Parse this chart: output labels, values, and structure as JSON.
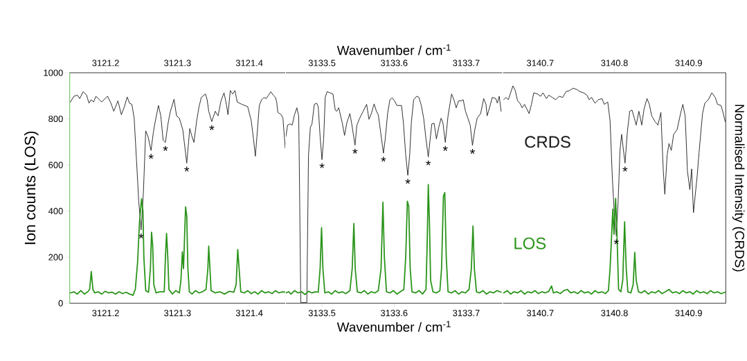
{
  "chart_data": [
    {
      "type": "line",
      "ylabel": "Ion counts (LOS)",
      "xlim": [
        3121.15,
        3121.45
      ],
      "xticks": [
        3121.2,
        3121.3,
        3121.4
      ],
      "x2lim": [
        3121.15,
        3121.45
      ],
      "x2ticks": [
        3121.2,
        3121.3,
        3121.4
      ],
      "ylim": [
        0,
        1000
      ],
      "yticks": [
        0,
        200,
        400,
        600,
        800,
        1000
      ],
      "series": [
        {
          "color": "#1a1a1a",
          "x": [
            3121.151,
            3121.1558,
            3121.1606,
            3121.1639,
            3121.1687,
            3121.1735,
            3121.1768,
            3121.18,
            3121.1832,
            3121.1865,
            3121.1913,
            3121.1945,
            3121.2026,
            3121.2074,
            3121.2113,
            3121.2171,
            3121.2219,
            3121.2261,
            3121.23,
            3121.2332,
            3121.2365,
            3121.2397,
            3121.2429,
            3121.2461,
            3121.2494,
            3121.2526,
            3121.2558,
            3121.259,
            3121.2632,
            3121.2665,
            3121.2687,
            3121.2735,
            3121.2768,
            3121.28,
            3121.2832,
            3121.2865,
            3121.2897,
            3121.2952,
            3121.2987,
            3121.3026,
            3121.3074,
            3121.3129,
            3121.3171,
            3121.3197,
            3121.3229,
            3121.3268,
            3121.33,
            3121.3332,
            3121.339,
            3121.3413,
            3121.3435,
            3121.3477,
            3121.3526,
            3121.3565,
            3121.3606,
            3121.3648,
            3121.3681,
            3121.3703,
            3121.3735,
            3121.3768,
            3121.38,
            3121.3832,
            3121.3897,
            3121.3977,
            3121.4026,
            3121.4058,
            3121.4084,
            3121.4106,
            3121.4139,
            3121.4171,
            3121.4203,
            3121.4235,
            3121.4268,
            3121.43,
            3121.4332,
            3121.4365,
            3121.4381,
            3121.4397,
            3121.4445,
            3121.4468,
            3121.45
          ],
          "values": [
            873,
            898,
            903,
            888,
            918,
            903,
            868,
            883,
            873,
            898,
            883,
            873,
            898,
            868,
            833,
            878,
            818,
            853,
            895,
            868,
            863,
            803,
            623,
            443,
            318,
            483,
            748,
            723,
            663,
            743,
            783,
            858,
            813,
            708,
            698,
            773,
            828,
            885,
            813,
            803,
            753,
            608,
            758,
            728,
            698,
            793,
            853,
            893,
            908,
            883,
            833,
            788,
            833,
            813,
            878,
            913,
            863,
            818,
            923,
            908,
            923,
            873,
            863,
            853,
            793,
            713,
            638,
            723,
            858,
            883,
            893,
            888,
            903,
            918,
            903,
            893,
            873,
            828,
            818,
            803,
            673
          ]
        },
        {
          "color": "#2a941a",
          "x": [
            3121.151,
            3121.1558,
            3121.1606,
            3121.1655,
            3121.1703,
            3121.1752,
            3121.1777,
            3121.18,
            3121.1823,
            3121.1848,
            3121.1897,
            3121.1945,
            3121.1994,
            3121.2042,
            3121.209,
            3121.2139,
            3121.2187,
            3121.2235,
            3121.2284,
            3121.2332,
            3121.2381,
            3121.2413,
            3121.2445,
            3121.2471,
            3121.25,
            3121.2519,
            3121.2532,
            3121.2558,
            3121.2597,
            3121.2623,
            3121.2639,
            3121.2655,
            3121.2671,
            3121.2703,
            3121.2752,
            3121.2816,
            3121.2832,
            3121.2848,
            3121.2865,
            3121.2881,
            3121.2929,
            3121.2977,
            3121.3026,
            3121.3048,
            3121.3068,
            3121.3084,
            3121.31,
            3121.3113,
            3121.3129,
            3121.3145,
            3121.3165,
            3121.3203,
            3121.3252,
            3121.33,
            3121.3348,
            3121.3397,
            3121.3423,
            3121.3435,
            3121.3452,
            3121.3468,
            3121.3526,
            3121.359,
            3121.3655,
            3121.3719,
            3121.3784,
            3121.3816,
            3121.3839,
            3121.3858,
            3121.3881,
            3121.3929,
            3121.3977,
            3121.4026,
            3121.4074,
            3121.4123,
            3121.4171,
            3121.4219,
            3121.4268,
            3121.4316,
            3121.4365,
            3121.4413,
            3121.4461,
            3121.45
          ],
          "values": [
            45,
            50,
            40,
            55,
            40,
            50,
            60,
            138,
            60,
            45,
            50,
            40,
            52,
            45,
            48,
            40,
            50,
            42,
            48,
            40,
            35,
            60,
            180,
            350,
            453,
            400,
            200,
            55,
            48,
            150,
            308,
            250,
            80,
            45,
            50,
            50,
            200,
            303,
            200,
            60,
            40,
            55,
            45,
            100,
            223,
            150,
            300,
            418,
            380,
            150,
            50,
            40,
            55,
            45,
            50,
            60,
            150,
            248,
            150,
            55,
            45,
            50,
            40,
            52,
            48,
            80,
            233,
            150,
            50,
            45,
            55,
            42,
            50,
            40,
            55,
            45,
            50,
            42,
            55,
            45,
            50,
            48
          ]
        }
      ],
      "annotations": [
        {
          "text": "*",
          "x": 3121.2494,
          "y": 318
        },
        {
          "text": "*",
          "x": 3121.2632,
          "y": 663
        },
        {
          "text": "*",
          "x": 3121.2832,
          "y": 698
        },
        {
          "text": "*",
          "x": 3121.3129,
          "y": 608
        },
        {
          "text": "*",
          "x": 3121.3477,
          "y": 788
        }
      ]
    },
    {
      "type": "line",
      "xlabel": "Wavenumber / cm$^{-1}$",
      "x2label": "Wavenumber / cm$^{-1}$",
      "xlim": [
        3133.45,
        3133.75
      ],
      "xticks": [
        3133.5,
        3133.6,
        3133.7
      ],
      "x2lim": [
        3133.45,
        3133.75
      ],
      "x2ticks": [
        3133.5,
        3133.6,
        3133.7
      ],
      "ylim": [
        0,
        1000
      ],
      "tick_labels": "x",
      "series": [
        {
          "color": "#1a1a1a",
          "x": [
            3133.45,
            3133.4523,
            3133.4555,
            3133.4587,
            3133.4619,
            3133.4652,
            3133.4677,
            3133.4684,
            3133.4706,
            3133.479,
            3133.4813,
            3133.4839,
            3133.4861,
            3133.4894,
            3133.4926,
            3133.4948,
            3133.4974,
            3133.5,
            3133.5023,
            3133.5045,
            3133.5071,
            3133.511,
            3133.5152,
            3133.5184,
            3133.5206,
            3133.5232,
            3133.5281,
            3133.5313,
            3133.5345,
            3133.5387,
            3133.541,
            3133.5458,
            3133.5484,
            3133.5523,
            3133.5571,
            3133.5619,
            3133.5652,
            3133.5684,
            3133.5723,
            3133.5755,
            3133.5781,
            3133.5813,
            3133.5852,
            3133.5877,
            3133.591,
            3133.5942,
            3133.5974,
            3133.6006,
            3133.6039,
            3133.6103,
            3133.6129,
            3133.6161,
            3133.619,
            3133.6216,
            3133.6239,
            3133.6271,
            3133.6313,
            3133.6345,
            3133.6377,
            3133.641,
            3133.6442,
            3133.6474,
            3133.6497,
            3133.6523,
            3133.6555,
            3133.6587,
            3133.6619,
            3133.6652,
            3133.6677,
            3133.671,
            3133.6748,
            3133.6797,
            3133.6829,
            3133.6861,
            3133.6894,
            3133.6926,
            3133.6958,
            3133.699,
            3133.7023,
            3133.7055,
            3133.7087,
            3133.7119,
            3133.7152,
            3133.72,
            3133.7242,
            3133.7274,
            3133.729,
            3133.7323,
            3133.7361,
            3133.741,
            3133.7432,
            3133.7458,
            3133.7484
          ],
          "values": [
            723,
            773,
            778,
            773,
            818,
            848,
            813,
            643,
            3,
            3,
            643,
            763,
            778,
            863,
            868,
            853,
            723,
            623,
            713,
            893,
            918,
            913,
            908,
            838,
            833,
            848,
            783,
            728,
            783,
            823,
            783,
            686,
            773,
            803,
            833,
            863,
            798,
            823,
            865,
            833,
            818,
            743,
            651,
            713,
            823,
            883,
            891,
            878,
            858,
            858,
            783,
            643,
            555,
            643,
            783,
            883,
            898,
            893,
            858,
            803,
            713,
            635,
            703,
            778,
            781,
            713,
            763,
            803,
            783,
            698,
            813,
            908,
            883,
            848,
            878,
            878,
            883,
            833,
            803,
            773,
            685,
            753,
            803,
            823,
            888,
            863,
            813,
            848,
            893,
            888,
            868,
            898,
            833
          ]
        },
        {
          "color": "#2a941a",
          "x": [
            3133.45,
            3133.4539,
            3133.4571,
            3133.4619,
            3133.4668,
            3133.4716,
            3133.4765,
            3133.4813,
            3133.4861,
            3133.491,
            3133.4948,
            3133.4974,
            3133.4994,
            3133.5013,
            3133.5039,
            3133.5087,
            3133.5135,
            3133.5184,
            3133.5232,
            3133.5281,
            3133.5329,
            3133.5387,
            3133.5419,
            3133.5442,
            3133.5461,
            3133.549,
            3133.5539,
            3133.5587,
            3133.5635,
            3133.5684,
            3133.5732,
            3133.5781,
            3133.5819,
            3133.5845,
            3133.5865,
            3133.5894,
            3133.5942,
            3133.599,
            3133.6039,
            3133.6087,
            3133.6135,
            3133.6161,
            3133.6184,
            3133.6203,
            3133.6223,
            3133.6248,
            3133.6297,
            3133.6345,
            3133.6394,
            3133.6442,
            3133.6458,
            3133.6474,
            3133.649,
            3133.6506,
            3133.6539,
            3133.6587,
            3133.6635,
            3133.6658,
            3133.6684,
            3133.6703,
            3133.6723,
            3133.6748,
            3133.6797,
            3133.6845,
            3133.6894,
            3133.6942,
            3133.699,
            3133.7039,
            3133.7071,
            3133.7094,
            3133.7113,
            3133.7142,
            3133.7184,
            3133.7232,
            3133.7281,
            3133.7329,
            3133.7377,
            3133.7426,
            3133.7484
          ],
          "values": [
            45,
            50,
            40,
            55,
            45,
            50,
            38,
            52,
            45,
            50,
            48,
            150,
            328,
            150,
            45,
            50,
            40,
            55,
            45,
            50,
            42,
            55,
            150,
            346,
            150,
            50,
            45,
            55,
            40,
            50,
            45,
            55,
            150,
            438,
            200,
            50,
            45,
            55,
            40,
            50,
            60,
            200,
            443,
            420,
            150,
            50,
            45,
            55,
            40,
            60,
            250,
            515,
            350,
            100,
            50,
            45,
            55,
            150,
            465,
            480,
            200,
            50,
            45,
            55,
            40,
            50,
            45,
            60,
            150,
            335,
            150,
            50,
            45,
            55,
            40,
            50,
            45,
            55,
            48
          ]
        }
      ],
      "annotations": [
        {
          "text": "*",
          "x": 3133.5,
          "y": 623
        },
        {
          "text": "*",
          "x": 3133.5458,
          "y": 686
        },
        {
          "text": "*",
          "x": 3133.5852,
          "y": 651
        },
        {
          "text": "*",
          "x": 3133.619,
          "y": 555
        },
        {
          "text": "*",
          "x": 3133.6474,
          "y": 635
        },
        {
          "text": "*",
          "x": 3133.671,
          "y": 698
        },
        {
          "text": "*",
          "x": 3133.7087,
          "y": 685
        }
      ]
    },
    {
      "type": "line",
      "y2label": "Normalised Intensity (CRDS)",
      "xlim": [
        3140.65,
        3140.95
      ],
      "xticks": [
        3140.7,
        3140.8,
        3140.9
      ],
      "x2lim": [
        3140.65,
        3140.95
      ],
      "x2ticks": [
        3140.7,
        3140.8,
        3140.9
      ],
      "ylim": [
        0,
        1000
      ],
      "tick_labels": "x",
      "series": [
        {
          "name": "CRDS",
          "color": "#1a1a1a",
          "x": [
            3140.6508,
            3140.6539,
            3140.657,
            3140.6601,
            3140.6632,
            3140.6664,
            3140.6695,
            3140.6726,
            3140.6757,
            3140.6788,
            3140.6819,
            3140.685,
            3140.6882,
            3140.6913,
            3140.696,
            3140.7006,
            3140.7037,
            3140.7084,
            3140.7115,
            3140.7162,
            3140.7209,
            3140.7255,
            3140.7302,
            3140.7349,
            3140.7396,
            3140.7442,
            3140.7489,
            3140.7536,
            3140.7583,
            3140.7629,
            3140.766,
            3140.7692,
            3140.7738,
            3140.7785,
            3140.7832,
            3140.7863,
            3140.791,
            3140.7941,
            3140.7972,
            3140.8003,
            3140.8025,
            3140.805,
            3140.8075,
            3140.8097,
            3140.8118,
            3140.8143,
            3140.8174,
            3140.8206,
            3140.8237,
            3140.8268,
            3140.8293,
            3140.833,
            3140.8368,
            3140.8399,
            3140.8439,
            3140.847,
            3140.8502,
            3140.8548,
            3140.8586,
            3140.8626,
            3140.8657,
            3140.8679,
            3140.871,
            3140.8735,
            3140.8766,
            3140.8798,
            3140.8844,
            3140.8891,
            3140.8922,
            3140.8953,
            3140.8984,
            3140.9016,
            3140.904,
            3140.9065,
            3140.9093,
            3140.9115,
            3140.914,
            3140.9187,
            3140.9218,
            3140.9265,
            3140.9312,
            3140.9358,
            3140.9389,
            3140.9436,
            3140.9467,
            3140.9492
          ],
          "values": [
            883,
            893,
            883,
            913,
            943,
            923,
            878,
            868,
            848,
            863,
            843,
            823,
            863,
            913,
            908,
            898,
            913,
            888,
            903,
            893,
            883,
            898,
            893,
            918,
            923,
            933,
            928,
            918,
            913,
            903,
            883,
            893,
            868,
            883,
            888,
            863,
            873,
            793,
            543,
            363,
            293,
            443,
            663,
            733,
            673,
            608,
            743,
            833,
            838,
            803,
            773,
            833,
            773,
            843,
            888,
            863,
            813,
            788,
            773,
            828,
            583,
            473,
            643,
            693,
            663,
            733,
            753,
            823,
            863,
            813,
            573,
            493,
            583,
            393,
            483,
            553,
            653,
            823,
            868,
            883,
            913,
            893,
            863,
            858,
            823,
            788
          ]
        },
        {
          "name": "LOS",
          "color": "#2a941a",
          "x": [
            3140.6508,
            3140.6555,
            3140.6601,
            3140.6648,
            3140.6695,
            3140.6741,
            3140.6788,
            3140.6835,
            3140.6882,
            3140.6928,
            3140.6975,
            3140.7022,
            3140.7069,
            3140.7115,
            3140.7153,
            3140.7178,
            3140.7224,
            3140.7271,
            3140.7318,
            3140.7364,
            3140.7411,
            3140.7458,
            3140.7505,
            3140.7551,
            3140.7598,
            3140.7645,
            3140.7692,
            3140.7738,
            3140.7785,
            3140.7832,
            3140.7879,
            3140.7919,
            3140.7941,
            3140.7963,
            3140.7978,
            3140.7994,
            3140.8016,
            3140.8034,
            3140.8056,
            3140.8087,
            3140.8112,
            3140.8137,
            3140.8159,
            3140.8181,
            3140.8221,
            3140.8252,
            3140.8274,
            3140.8293,
            3140.8324,
            3140.8361,
            3140.8408,
            3140.8455,
            3140.8502,
            3140.8548,
            3140.8595,
            3140.8642,
            3140.8688,
            3140.8735,
            3140.8782,
            3140.8829,
            3140.8875,
            3140.8922,
            3140.8969,
            3140.9016,
            3140.9062,
            3140.9109,
            3140.9156,
            3140.9202,
            3140.9249,
            3140.9296,
            3140.9343,
            3140.9389,
            3140.9436,
            3140.9492
          ],
          "values": [
            45,
            55,
            40,
            50,
            45,
            55,
            40,
            50,
            45,
            55,
            42,
            50,
            45,
            52,
            75,
            45,
            50,
            42,
            55,
            60,
            45,
            50,
            42,
            55,
            45,
            50,
            40,
            55,
            45,
            50,
            42,
            55,
            150,
            300,
            408,
            300,
            455,
            300,
            60,
            50,
            100,
            353,
            150,
            50,
            45,
            80,
            221,
            100,
            50,
            45,
            55,
            40,
            50,
            45,
            55,
            42,
            50,
            60,
            45,
            50,
            42,
            55,
            45,
            50,
            40,
            55,
            45,
            50,
            42,
            55,
            45,
            50,
            42,
            48
          ]
        }
      ],
      "annotations": [
        {
          "text": "*",
          "x": 3140.8025,
          "y": 293
        },
        {
          "text": "*",
          "x": 3140.8143,
          "y": 608
        }
      ]
    }
  ]
}
